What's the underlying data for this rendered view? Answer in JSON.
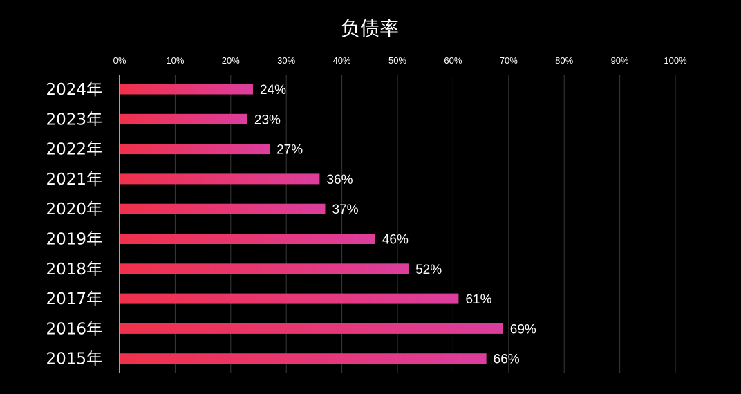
{
  "chart_data": {
    "type": "bar",
    "orientation": "horizontal",
    "title": "负债率",
    "categories": [
      "2024年",
      "2023年",
      "2022年",
      "2021年",
      "2020年",
      "2019年",
      "2018年",
      "2017年",
      "2016年",
      "2015年"
    ],
    "values": [
      24,
      23,
      27,
      36,
      37,
      46,
      52,
      61,
      69,
      66
    ],
    "value_labels": [
      "24%",
      "23%",
      "27%",
      "36%",
      "37%",
      "46%",
      "52%",
      "61%",
      "69%",
      "66%"
    ],
    "xlim": [
      0,
      100
    ],
    "x_ticks": [
      "0%",
      "10%",
      "20%",
      "30%",
      "40%",
      "50%",
      "60%",
      "70%",
      "80%",
      "90%",
      "100%"
    ],
    "x_axis_position": "top",
    "grid": true,
    "legend": "none",
    "colors": {
      "background": "#000000",
      "bar_start": "#f0314a",
      "bar_end": "#dc3e9e",
      "grid": "#3a3a3a",
      "axis": "#d9d9d9",
      "text": "#ffffff"
    }
  }
}
